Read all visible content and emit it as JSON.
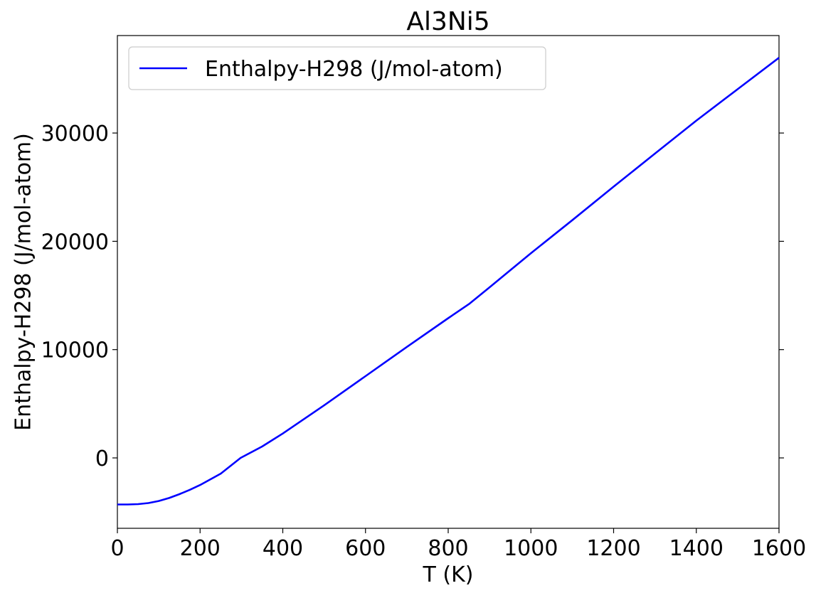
{
  "chart_data": {
    "type": "line",
    "title": "Al3Ni5",
    "xlabel": "T (K)",
    "ylabel": "Enthalpy-H298 (J/mol-atom)",
    "xlim": [
      0,
      1600
    ],
    "ylim": [
      -6500,
      39000
    ],
    "x_ticks": [
      0,
      200,
      400,
      600,
      800,
      1000,
      1200,
      1400,
      1600
    ],
    "y_ticks": [
      0,
      10000,
      20000,
      30000
    ],
    "x_tick_labels": [
      "0",
      "200",
      "400",
      "600",
      "800",
      "1000",
      "1200",
      "1400",
      "1600"
    ],
    "y_tick_labels": [
      "0",
      "10000",
      "20000",
      "30000"
    ],
    "grid": false,
    "legend": "upper-left",
    "series": [
      {
        "name": "Enthalpy-H298 (J/mol-atom)",
        "color": "#0000ff",
        "x": [
          0,
          25,
          50,
          75,
          100,
          125,
          150,
          175,
          200,
          250,
          298,
          350,
          400,
          500,
          600,
          700,
          800,
          850,
          900,
          1000,
          1100,
          1200,
          1300,
          1400,
          1500,
          1600
        ],
        "y": [
          -4300,
          -4300,
          -4270,
          -4170,
          -3980,
          -3700,
          -3350,
          -2950,
          -2500,
          -1450,
          0,
          1050,
          2250,
          4850,
          7550,
          10250,
          12900,
          14200,
          15750,
          18900,
          21950,
          25050,
          28100,
          31150,
          34050,
          36950
        ]
      }
    ]
  }
}
